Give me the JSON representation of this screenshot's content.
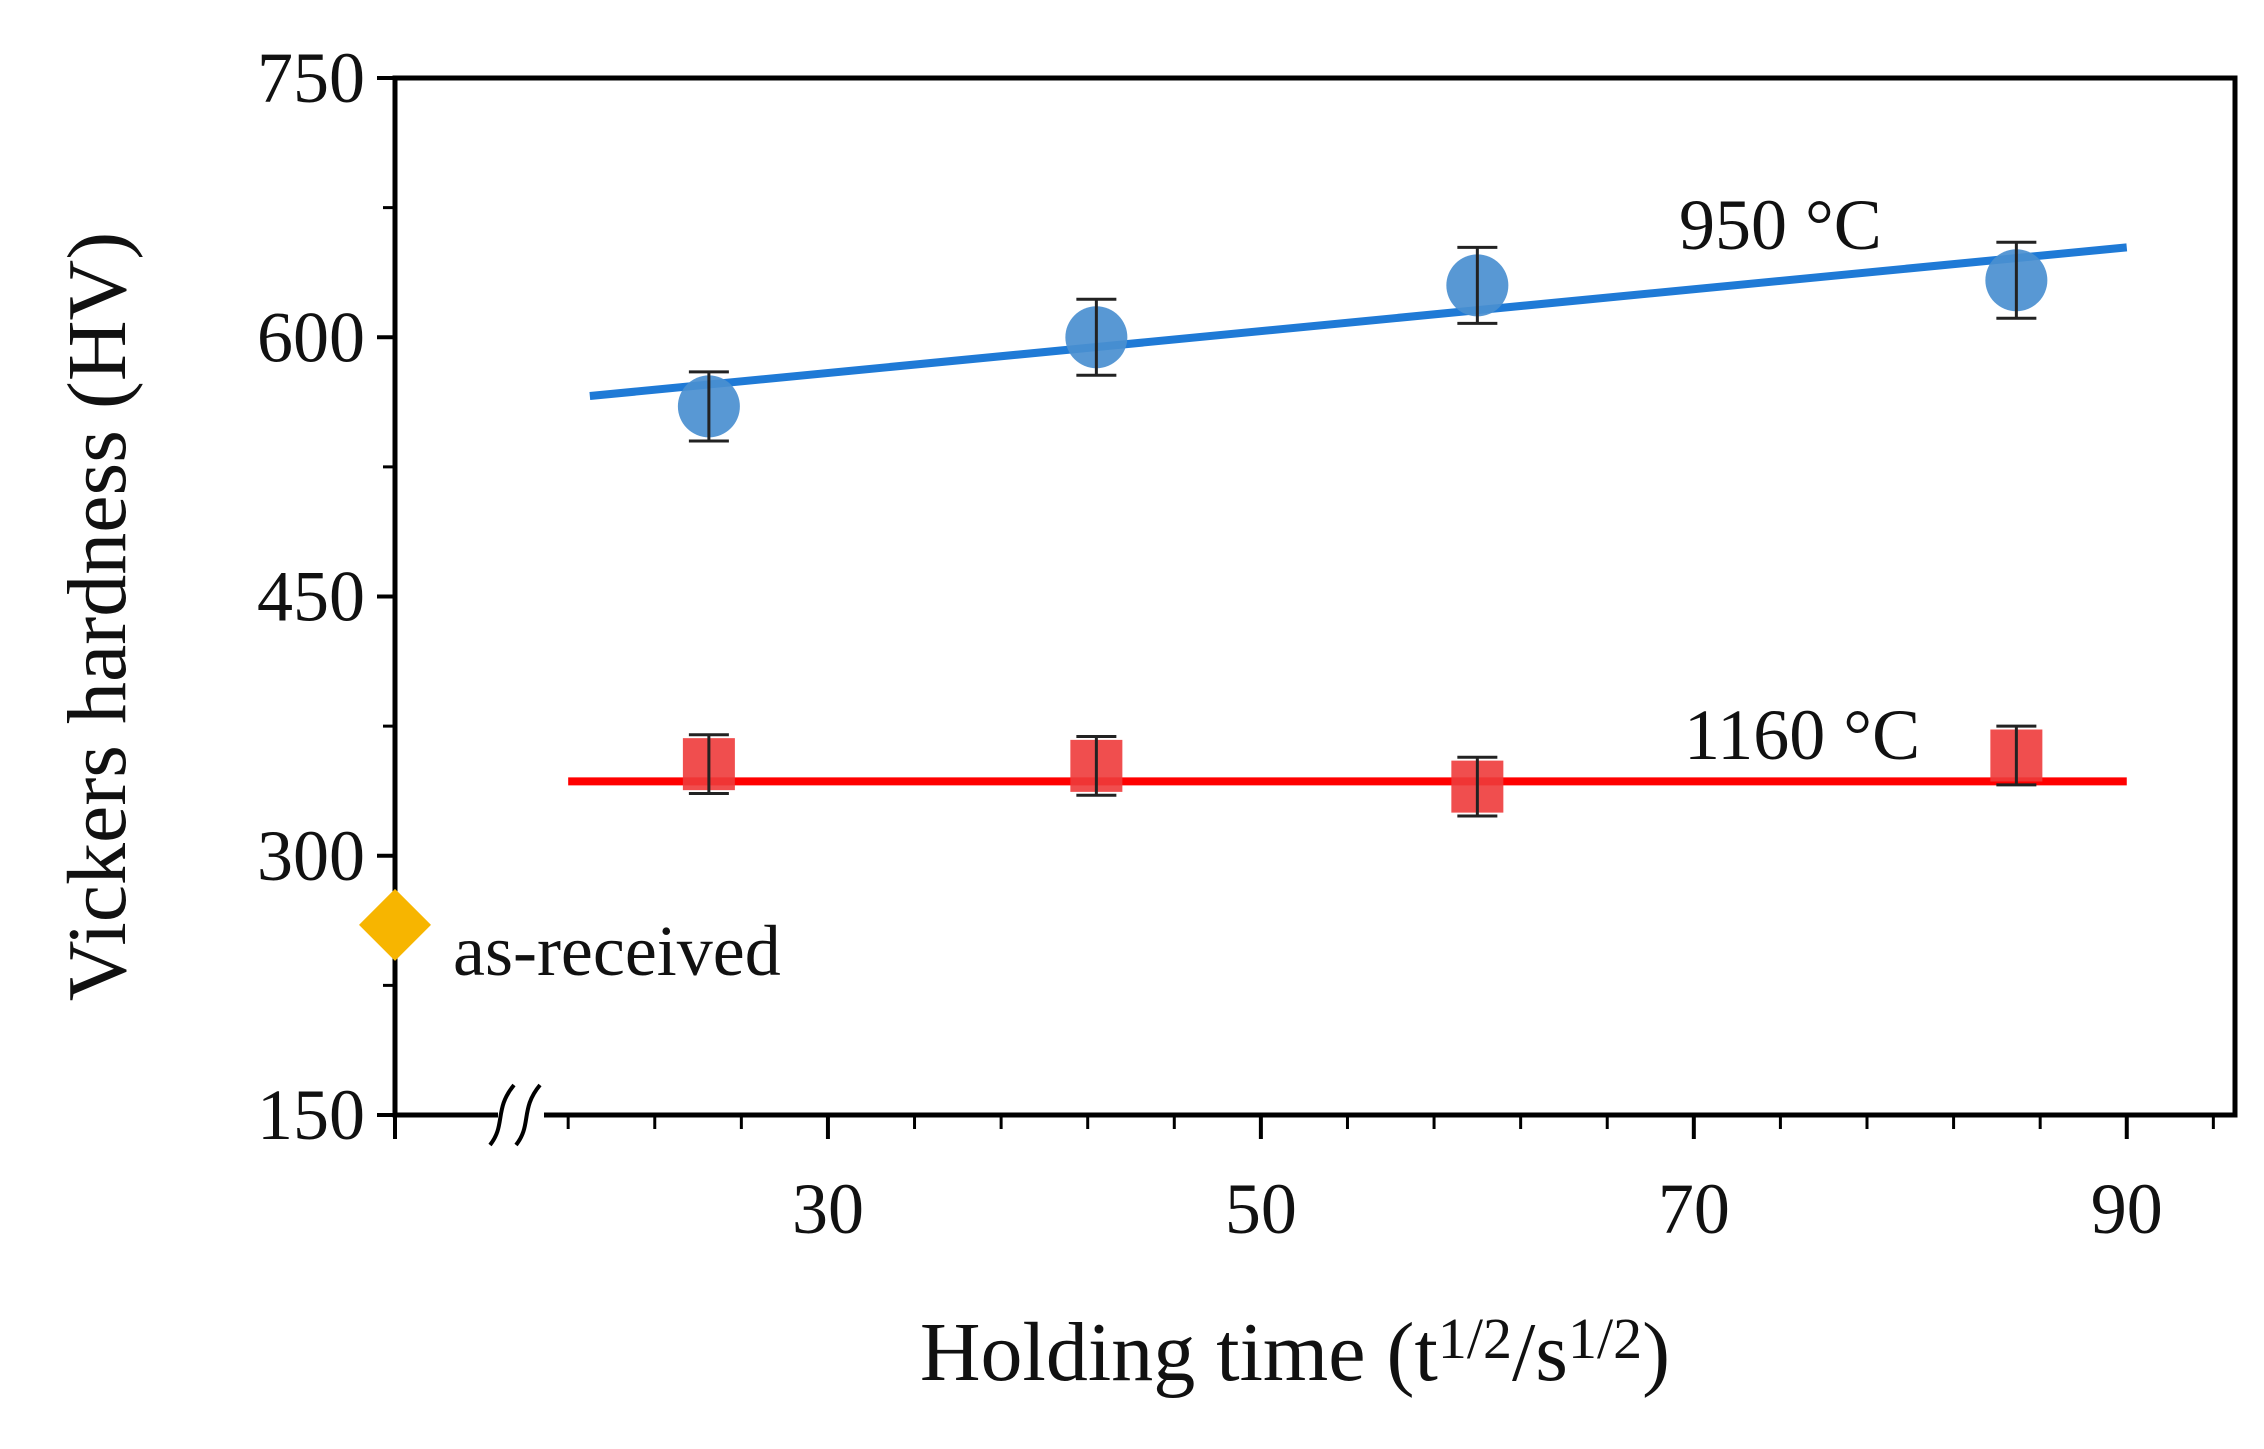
{
  "chart_data": {
    "type": "scatter",
    "xlabel_main": "Holding time (t",
    "xlabel_sup1": "1/2",
    "xlabel_mid": "/s",
    "xlabel_sup2": "1/2",
    "xlabel_end": ")",
    "ylabel": "Vickers hardness (HV)",
    "xlim": [
      10,
      95
    ],
    "ylim": [
      150,
      750
    ],
    "x_break": true,
    "x_ticks": [
      30,
      50,
      70,
      90
    ],
    "x_tick_labels": [
      "30",
      "50",
      "70",
      "90"
    ],
    "y_ticks": [
      150,
      300,
      450,
      600,
      750
    ],
    "y_tick_labels": [
      "150",
      "300",
      "450",
      "600",
      "750"
    ],
    "series": [
      {
        "label": "950 °C",
        "marker": "circle",
        "color": "#4a8fd0",
        "x": [
          24.5,
          42.4,
          60.0,
          84.9
        ],
        "y": [
          560,
          600,
          630,
          633
        ],
        "err": [
          20,
          22,
          22,
          22
        ],
        "fit": {
          "x": [
            19,
            90
          ],
          "y": [
            566,
            652
          ],
          "color": "#1f7ad6"
        }
      },
      {
        "label": "1160 °C",
        "marker": "square",
        "color": "#ee3b3b",
        "x": [
          24.5,
          42.4,
          60.0,
          84.9
        ],
        "y": [
          353,
          352,
          340,
          358
        ],
        "err": [
          17,
          17,
          17,
          17
        ],
        "fit": {
          "x": [
            18,
            90
          ],
          "y": [
            343,
            343
          ],
          "color": "#ff0000"
        }
      }
    ],
    "reference_point": {
      "label": "as-received",
      "marker": "diamond",
      "color": "#f7b500",
      "y": 260
    },
    "annotations": [
      {
        "text": "950 °C",
        "x": 74,
        "y": 665
      },
      {
        "text": "1160 °C",
        "x": 75,
        "y": 370
      }
    ]
  }
}
